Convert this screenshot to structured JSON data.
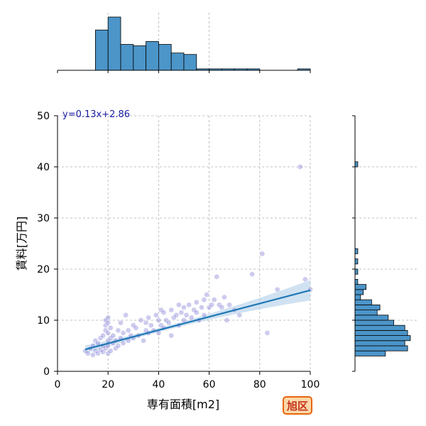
{
  "chart_data": {
    "type": "scatter",
    "title": "",
    "xlabel": "専有面積[m2]",
    "ylabel": "賃料[万円]",
    "xlim": [
      0,
      100
    ],
    "ylim": [
      0,
      50
    ],
    "xticks": [
      "0",
      "20",
      "40",
      "60",
      "80",
      "100"
    ],
    "yticks": [
      "0",
      "10",
      "20",
      "30",
      "40",
      "50"
    ],
    "grid": true,
    "regression": {
      "label": "y=0.13x+2.86",
      "slope": 0.13,
      "intercept": 2.86,
      "x_range": [
        11,
        100
      ]
    },
    "points": {
      "x": [
        11,
        12,
        13,
        14,
        14,
        15,
        15,
        16,
        16,
        17,
        17,
        18,
        18,
        18,
        19,
        19,
        19,
        19,
        20,
        20,
        20,
        20,
        20,
        20,
        21,
        21,
        21,
        22,
        22,
        23,
        23,
        24,
        24,
        25,
        25,
        26,
        26,
        27,
        28,
        28,
        29,
        30,
        30,
        31,
        32,
        33,
        34,
        35,
        35,
        36,
        36,
        37,
        38,
        39,
        40,
        40,
        41,
        41,
        42,
        42,
        43,
        44,
        45,
        45,
        46,
        47,
        48,
        48,
        49,
        50,
        50,
        51,
        52,
        53,
        54,
        55,
        55,
        56,
        57,
        58,
        58,
        59,
        60,
        61,
        62,
        63,
        64,
        65,
        66,
        67,
        68,
        70,
        72,
        77,
        81,
        83,
        87,
        96,
        98,
        100
      ],
      "y": [
        4.0,
        3.5,
        4.5,
        3.2,
        5.0,
        4.0,
        6.0,
        3.5,
        5.5,
        4.2,
        6.5,
        3.8,
        5.0,
        7.0,
        4.5,
        8.0,
        9.0,
        10.0,
        3.5,
        5.0,
        6.0,
        7.5,
        9.5,
        10.5,
        4.0,
        6.5,
        8.5,
        5.5,
        7.0,
        4.5,
        6.0,
        5.0,
        8.0,
        6.5,
        9.5,
        5.5,
        7.5,
        11.0,
        6.0,
        8.0,
        7.0,
        6.5,
        9.0,
        8.5,
        7.0,
        10.0,
        6.0,
        8.0,
        9.5,
        7.5,
        10.5,
        9.0,
        8.0,
        11.0,
        7.5,
        10.0,
        9.0,
        12.0,
        8.5,
        11.5,
        10.0,
        9.5,
        7.0,
        12.0,
        10.5,
        11.0,
        9.0,
        13.0,
        11.5,
        10.0,
        12.5,
        11.0,
        13.0,
        10.5,
        12.0,
        11.5,
        13.5,
        10.0,
        12.5,
        14.0,
        11.0,
        15.0,
        12.5,
        13.0,
        14.0,
        18.5,
        13.0,
        12.5,
        14.5,
        10.0,
        13.0,
        12.0,
        11.0,
        19.0,
        23.0,
        7.5,
        16.0,
        40.0,
        18.0,
        16.0
      ]
    },
    "x_histogram": {
      "bin_edges": [
        0,
        5,
        10,
        15,
        20,
        25,
        30,
        35,
        40,
        45,
        50,
        55,
        60,
        65,
        70,
        75,
        80,
        85,
        90,
        95,
        100
      ],
      "counts": [
        0,
        0,
        0,
        28,
        37,
        18,
        17,
        20,
        18,
        12,
        11,
        1,
        1,
        1,
        1,
        1,
        0,
        0,
        0,
        1
      ]
    },
    "y_histogram": {
      "bin_edges": [
        3,
        4,
        5,
        6,
        7,
        8,
        9,
        10,
        11,
        12,
        13,
        14,
        15,
        16,
        17,
        18,
        19,
        20,
        21,
        22,
        23,
        24,
        25,
        26,
        27,
        28,
        29,
        30,
        31,
        32,
        33,
        34,
        35,
        36,
        37,
        38,
        39,
        40,
        41
      ],
      "counts": [
        11,
        19,
        18,
        20,
        19,
        18,
        14,
        12,
        8,
        9,
        6,
        2,
        3,
        4,
        1,
        0,
        1,
        0,
        1,
        0,
        1,
        0,
        0,
        0,
        0,
        0,
        0,
        0,
        0,
        0,
        0,
        0,
        0,
        0,
        0,
        0,
        0,
        1
      ]
    }
  },
  "badge": {
    "label": "旭区"
  },
  "colors": {
    "points": "#5b54c7",
    "line": "#1f77b4",
    "band": "#a9cbe8",
    "hist": "#4c95c9",
    "eq": "#1a1aa6",
    "badge_border": "#e8660c",
    "badge_fill": "#fbd7a8",
    "badge_text": "#c5311c"
  }
}
